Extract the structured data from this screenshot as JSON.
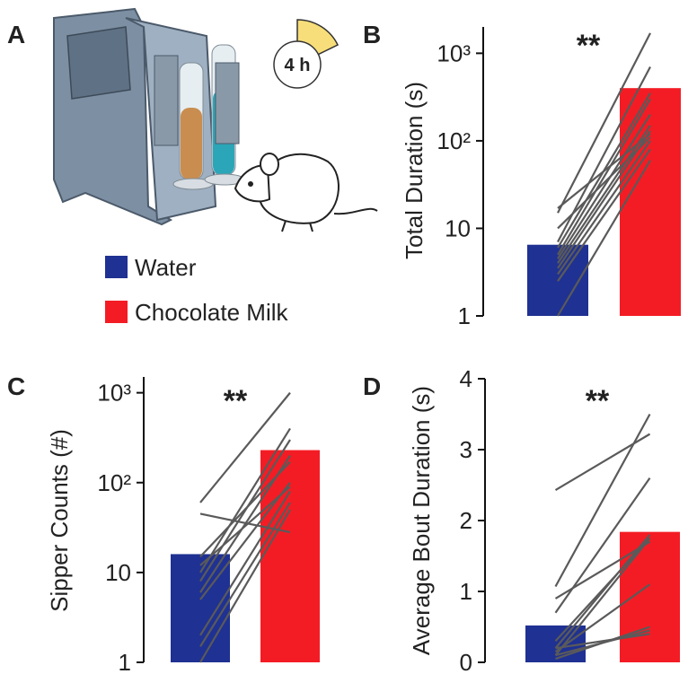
{
  "panel_a": {
    "label": "A",
    "timer": "4 h"
  },
  "legend": [
    {
      "name": "Water",
      "color": "#1f3192"
    },
    {
      "name": "Chocolate Milk",
      "color": "#f41c24"
    }
  ],
  "chart_data": [
    {
      "panel": "B",
      "type": "bar",
      "y_label": "Total Duration (s)",
      "annotation": "**",
      "log_scale": true,
      "values": [
        6.5,
        400
      ],
      "ylim": [
        1,
        2000
      ],
      "yticks": [
        1,
        10,
        {
          "value": 100,
          "label": "10²"
        },
        {
          "value": 1000,
          "label": "10³"
        }
      ],
      "pairs": [
        [
          1,
          60
        ],
        [
          2.5,
          80
        ],
        [
          3,
          100
        ],
        [
          3.5,
          130
        ],
        [
          4,
          150
        ],
        [
          4.5,
          200
        ],
        [
          5,
          300
        ],
        [
          6,
          350
        ],
        [
          7,
          700
        ],
        [
          10,
          110
        ],
        [
          15,
          1700
        ],
        [
          17,
          120
        ]
      ]
    },
    {
      "panel": "C",
      "type": "bar",
      "y_label": "Sipper Counts (#)",
      "annotation": "**",
      "log_scale": true,
      "values": [
        16,
        230
      ],
      "ylim": [
        1,
        1500
      ],
      "yticks": [
        1,
        10,
        {
          "value": 100,
          "label": "10²"
        },
        {
          "value": 1000,
          "label": "10³"
        }
      ],
      "pairs": [
        [
          1,
          50
        ],
        [
          1.5,
          60
        ],
        [
          2,
          80
        ],
        [
          5,
          100
        ],
        [
          6,
          200
        ],
        [
          8,
          300
        ],
        [
          10,
          400
        ],
        [
          12,
          90
        ],
        [
          45,
          28
        ],
        [
          60,
          1000
        ],
        [
          15,
          170
        ]
      ]
    },
    {
      "panel": "D",
      "type": "bar",
      "y_label": "Average Bout Duration (s)",
      "annotation": "**",
      "log_scale": false,
      "values": [
        0.52,
        1.84
      ],
      "ylim": [
        0,
        4
      ],
      "yticks": [
        0,
        1,
        2,
        3,
        4
      ],
      "pairs": [
        [
          2.43,
          3.22
        ],
        [
          1.07,
          3.5
        ],
        [
          0.7,
          2.6
        ],
        [
          0.2,
          1.8
        ],
        [
          0.1,
          1.75
        ],
        [
          0.15,
          1.1
        ],
        [
          0.05,
          0.5
        ],
        [
          0.1,
          0.45
        ],
        [
          0.2,
          0.4
        ],
        [
          0.3,
          1.75
        ],
        [
          0.9,
          1.7
        ]
      ]
    }
  ]
}
